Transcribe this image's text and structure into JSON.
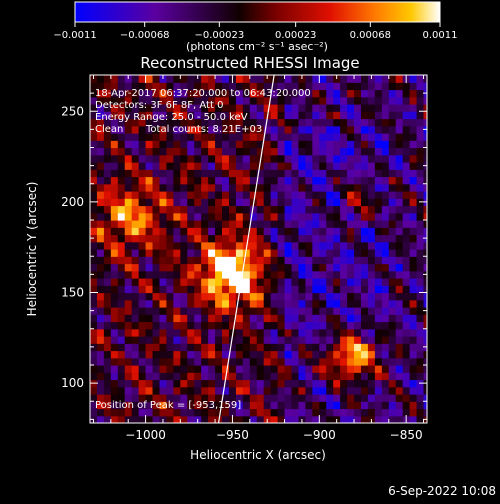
{
  "chart_data": {
    "type": "heatmap",
    "title": "Reconstructed RHESSI Image",
    "xlabel": "Heliocentric X (arcsec)",
    "ylabel": "Heliocentric Y (arcsec)",
    "xlim": [
      -1032,
      -838
    ],
    "ylim": [
      78,
      270
    ],
    "x_ticks": [
      -1000,
      -950,
      -900,
      -850
    ],
    "x_tick_labels": [
      "−1000",
      "−950",
      "−900",
      "−850"
    ],
    "y_ticks": [
      100,
      150,
      200,
      250
    ],
    "y_tick_labels": [
      "100",
      "150",
      "200",
      "250"
    ],
    "colorbar": {
      "range": [
        -0.0011,
        0.0011
      ],
      "ticks": [
        -0.0011,
        -0.00068,
        -0.00023,
        0.00023,
        0.00068,
        0.0011
      ],
      "tick_labels": [
        "−0.0011",
        "−0.00068",
        "−0.00023",
        "0.00023",
        "0.00068",
        "0.0011"
      ],
      "units_label": "(photons cm⁻² s⁻¹ asec⁻²)",
      "colormap": [
        "#0000ff",
        "#5a00a0",
        "#000000",
        "#7a0000",
        "#e01000",
        "#ff7800",
        "#ffc800",
        "#ffffff"
      ]
    },
    "annotations": [
      "18-Apr-2017 06:37:20.000 to 06:43:20.000",
      "Detectors: 3F 6F 8F, Att 0",
      "Energy Range: 25.0 - 50.0 keV",
      "Clean",
      "Total counts: 8.21E+03"
    ],
    "peak_label": "Position of Peak = [-953,159]",
    "peak": [
      -953,
      159
    ],
    "limb_line": [
      [
        -958,
        78
      ],
      [
        -926,
        270
      ]
    ],
    "sources": [
      {
        "x": -953,
        "y": 159,
        "intensity": 1.0,
        "size": 17
      },
      {
        "x": -883,
        "y": 113,
        "intensity": 0.8,
        "size": 14
      },
      {
        "x": -1010,
        "y": 190,
        "intensity": 0.55,
        "size": 18
      },
      {
        "x": -878,
        "y": 198,
        "intensity": 0.4,
        "size": 12
      }
    ],
    "grid": false,
    "legend": "none"
  },
  "timestamp": "6-Sep-2022 10:08"
}
